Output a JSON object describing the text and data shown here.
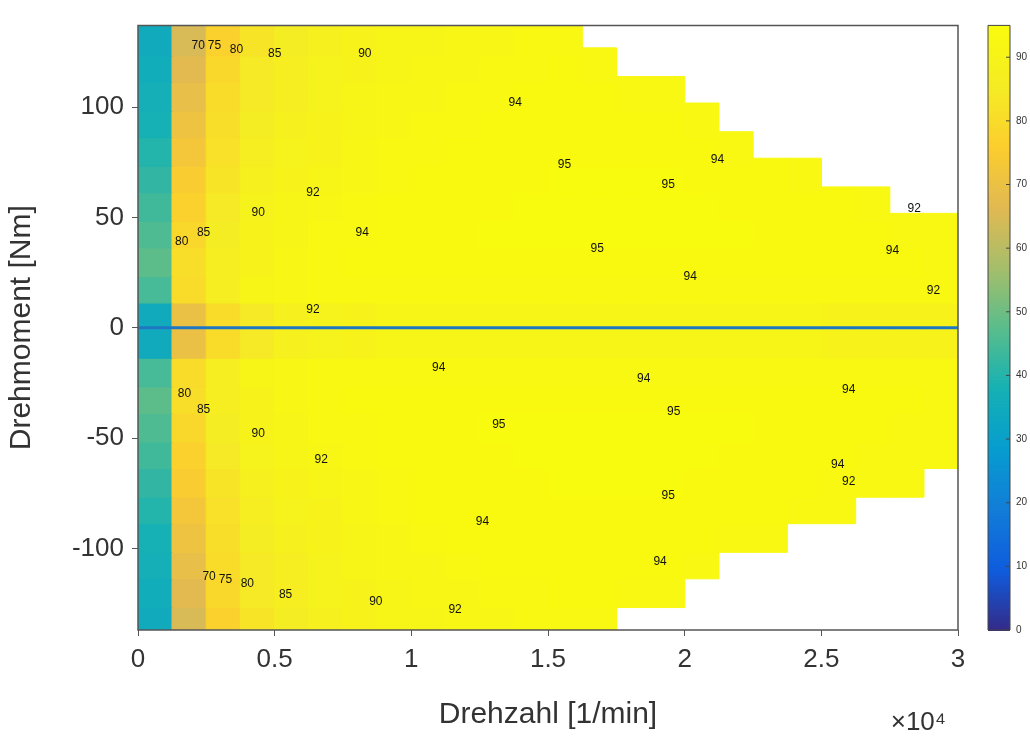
{
  "chart_data": {
    "type": "scatter",
    "xlabel": "Drehzahl [1/min]",
    "ylabel": "Drehmoment [Nm]",
    "marker": "square",
    "x": [
      0.0625,
      0.1875,
      0.3125,
      0.4375,
      0.5625,
      0.6875,
      0.8125,
      0.9375,
      1.0625,
      1.1875,
      1.3125,
      1.4375,
      1.5625,
      1.6875,
      1.8125,
      1.9375,
      2.0625,
      2.1875,
      2.3125,
      2.4375,
      2.5625,
      2.6875,
      2.8125,
      2.9375
    ],
    "xlim": [
      0,
      3
    ],
    "xticks": [
      0,
      0.5,
      1,
      1.5,
      2,
      2.5,
      3
    ],
    "ylim": [
      -137,
      137
    ],
    "yticks": [
      -100,
      -50,
      0,
      50,
      100
    ],
    "clim": [
      0,
      95
    ],
    "cticks": [
      0,
      10,
      20,
      30,
      40,
      50,
      60,
      70,
      80,
      90
    ],
    "series": [
      {
        "values": [
          131,
          131,
          131,
          131,
          131,
          131,
          131,
          131,
          131,
          131,
          131,
          131,
          131,
          null,
          null,
          null,
          null,
          null,
          null,
          null,
          null,
          null,
          null,
          null
        ],
        "cvalues": [
          35,
          65,
          77,
          83,
          86,
          88,
          90,
          91,
          91,
          92,
          92,
          93,
          93,
          null,
          null,
          null,
          null,
          null,
          null,
          null,
          null,
          null,
          null,
          null
        ],
        "colors": [
          "#11aabd",
          "#d8ba56",
          "#fbd12d",
          "#f7e427",
          "#f5ed23",
          "#f6f01e",
          "#f7f31a",
          "#f7f517",
          "#f7f517",
          "#f8f615",
          "#f8f615",
          "#f8f813",
          "#f8f813",
          null,
          null,
          null,
          null,
          null,
          null,
          null,
          null,
          null,
          null,
          null
        ]
      },
      {
        "values": [
          119,
          119,
          119,
          119,
          119,
          119,
          119,
          119,
          119,
          119,
          119,
          119,
          119,
          119,
          null,
          null,
          null,
          null,
          null,
          null,
          null,
          null,
          null,
          null
        ],
        "cvalues": [
          36,
          67,
          79,
          85,
          87,
          89,
          90,
          91,
          92,
          92,
          93,
          93,
          94,
          93,
          null,
          null,
          null,
          null,
          null,
          null,
          null,
          null,
          null,
          null
        ],
        "colors": [
          "#12adba",
          "#e2ba50",
          "#fad72b",
          "#f5ea25",
          "#f6ee21",
          "#f6f21c",
          "#f7f31a",
          "#f7f517",
          "#f8f615",
          "#f8f615",
          "#f8f813",
          "#f8f813",
          "#f9f910",
          "#f8f813",
          null,
          null,
          null,
          null,
          null,
          null,
          null,
          null,
          null,
          null
        ]
      },
      {
        "values": [
          106,
          106,
          106,
          106,
          106,
          106,
          106,
          106,
          106,
          106,
          106,
          106,
          106,
          106,
          106,
          106,
          null,
          null,
          null,
          null,
          null,
          null,
          null,
          null
        ],
        "cvalues": [
          37,
          69,
          80,
          85,
          87,
          89,
          91,
          92,
          92,
          93,
          93,
          94,
          94,
          94,
          93,
          93,
          null,
          null,
          null,
          null,
          null,
          null,
          null,
          null
        ],
        "colors": [
          "#14afb7",
          "#e8bf49",
          "#f9db2a",
          "#f5ea25",
          "#f6ee21",
          "#f6f21c",
          "#f7f517",
          "#f8f615",
          "#f8f615",
          "#f8f813",
          "#f8f813",
          "#f9f910",
          "#f9f910",
          "#f9f910",
          "#f8f813",
          "#f8f813",
          null,
          null,
          null,
          null,
          null,
          null,
          null,
          null
        ]
      },
      {
        "values": [
          94,
          94,
          94,
          94,
          94,
          94,
          94,
          94,
          94,
          94,
          94,
          94,
          94,
          94,
          94,
          94,
          94,
          null,
          null,
          null,
          null,
          null,
          null,
          null
        ],
        "cvalues": [
          38,
          71,
          81,
          86,
          88,
          90,
          91,
          92,
          93,
          93,
          94,
          94,
          94,
          94,
          94,
          94,
          93,
          null,
          null,
          null,
          null,
          null,
          null,
          null
        ],
        "colors": [
          "#15b1b4",
          "#eec341",
          "#f8de29",
          "#f5ed23",
          "#f6f01e",
          "#f7f31a",
          "#f7f517",
          "#f8f615",
          "#f8f813",
          "#f8f813",
          "#f9f910",
          "#f9f910",
          "#f9f910",
          "#f9f910",
          "#f9f910",
          "#f9f910",
          "#f8f813",
          null,
          null,
          null,
          null,
          null,
          null,
          null
        ]
      },
      {
        "values": [
          81,
          81,
          81,
          81,
          81,
          81,
          81,
          81,
          81,
          81,
          81,
          81,
          81,
          81,
          81,
          81,
          81,
          81,
          null,
          null,
          null,
          null,
          null,
          null
        ],
        "cvalues": [
          40,
          73,
          82,
          87,
          89,
          90,
          92,
          93,
          93,
          94,
          94,
          94,
          94,
          94,
          94,
          94,
          94,
          93,
          null,
          null,
          null,
          null,
          null,
          null
        ],
        "colors": [
          "#23b4ac",
          "#f3c739",
          "#f8e128",
          "#f6ee21",
          "#f6f21c",
          "#f7f31a",
          "#f8f615",
          "#f8f813",
          "#f8f813",
          "#f9f910",
          "#f9f910",
          "#f9f910",
          "#f9f910",
          "#f9f910",
          "#f9f910",
          "#f9f910",
          "#f9f910",
          "#f8f813",
          null,
          null,
          null,
          null,
          null,
          null
        ]
      },
      {
        "values": [
          69,
          69,
          69,
          69,
          69,
          69,
          69,
          69,
          69,
          69,
          69,
          69,
          69,
          69,
          69,
          69,
          69,
          69,
          69,
          69,
          null,
          null,
          null,
          null
        ],
        "cvalues": [
          42,
          75,
          83,
          88,
          90,
          91,
          92,
          93,
          94,
          94,
          94,
          94,
          95,
          95,
          95,
          95,
          94,
          94,
          94,
          93,
          null,
          null,
          null,
          null
        ],
        "colors": [
          "#32b6a3",
          "#f9cc32",
          "#f7e427",
          "#f6f01e",
          "#f7f31a",
          "#f7f517",
          "#f8f615",
          "#f8f813",
          "#f9f910",
          "#f9f910",
          "#f9f910",
          "#f9f910",
          "#f9fb0e",
          "#f9fb0e",
          "#f9fb0e",
          "#f9fb0e",
          "#f9f910",
          "#f9f910",
          "#f9f910",
          "#f8f813",
          null,
          null,
          null,
          null
        ]
      },
      {
        "values": [
          56,
          56,
          56,
          56,
          56,
          56,
          56,
          56,
          56,
          56,
          56,
          56,
          56,
          56,
          56,
          56,
          56,
          56,
          56,
          56,
          56,
          56,
          null,
          null
        ],
        "cvalues": [
          44,
          77,
          85,
          89,
          91,
          92,
          93,
          94,
          94,
          94,
          94,
          95,
          95,
          95,
          95,
          95,
          95,
          94,
          94,
          94,
          94,
          93,
          null,
          null
        ],
        "colors": [
          "#40b99b",
          "#fbd12d",
          "#f5ea25",
          "#f6f21c",
          "#f7f517",
          "#f8f615",
          "#f8f813",
          "#f9f910",
          "#f9f910",
          "#f9f910",
          "#f9f910",
          "#f9fb0e",
          "#f9fb0e",
          "#f9fb0e",
          "#f9fb0e",
          "#f9fb0e",
          "#f9fb0e",
          "#f9f910",
          "#f9f910",
          "#f9f910",
          "#f9f910",
          "#f8f813",
          null,
          null
        ]
      },
      {
        "values": [
          44,
          44,
          44,
          44,
          44,
          44,
          44,
          44,
          44,
          44,
          44,
          44,
          44,
          44,
          44,
          44,
          44,
          44,
          44,
          44,
          44,
          44,
          44,
          44
        ],
        "cvalues": [
          46,
          79,
          86,
          90,
          91,
          93,
          93,
          94,
          94,
          94,
          95,
          95,
          95,
          95,
          95,
          95,
          95,
          95,
          94,
          94,
          94,
          94,
          93,
          93
        ],
        "colors": [
          "#4ebb92",
          "#fad72b",
          "#f5ed23",
          "#f7f31a",
          "#f7f517",
          "#f8f813",
          "#f8f813",
          "#f9f910",
          "#f9f910",
          "#f9f910",
          "#f9fb0e",
          "#f9fb0e",
          "#f9fb0e",
          "#f9fb0e",
          "#f9fb0e",
          "#f9fb0e",
          "#f9fb0e",
          "#f9fb0e",
          "#f9f910",
          "#f9f910",
          "#f9f910",
          "#f9f910",
          "#f8f813",
          "#f8f813"
        ]
      },
      {
        "values": [
          31,
          31,
          31,
          31,
          31,
          31,
          31,
          31,
          31,
          31,
          31,
          31,
          31,
          31,
          31,
          31,
          31,
          31,
          31,
          31,
          31,
          31,
          31,
          31
        ],
        "cvalues": [
          48,
          81,
          87,
          90,
          92,
          93,
          94,
          94,
          94,
          94,
          94,
          94,
          94,
          94,
          94,
          94,
          94,
          94,
          94,
          94,
          94,
          94,
          94,
          93
        ],
        "colors": [
          "#5dbd8a",
          "#f8de29",
          "#f6ee21",
          "#f7f31a",
          "#f8f615",
          "#f8f813",
          "#f9f910",
          "#f9f910",
          "#f9f910",
          "#f9f910",
          "#f9f910",
          "#f9f910",
          "#f9f910",
          "#f9f910",
          "#f9f910",
          "#f9f910",
          "#f9f910",
          "#f9f910",
          "#f9f910",
          "#f9f910",
          "#f9f910",
          "#f9f910",
          "#f9f910",
          "#f8f813"
        ]
      },
      {
        "values": [
          19,
          19,
          19,
          19,
          19,
          19,
          19,
          19,
          19,
          19,
          19,
          19,
          19,
          19,
          19,
          19,
          19,
          19,
          19,
          19,
          19,
          19,
          19,
          19
        ],
        "cvalues": [
          45,
          80,
          87,
          91,
          92,
          93,
          93,
          93,
          93,
          93,
          93,
          93,
          93,
          93,
          93,
          93,
          93,
          93,
          93,
          93,
          93,
          93,
          93,
          93
        ],
        "colors": [
          "#47ba97",
          "#f9db2a",
          "#f6ee21",
          "#f7f517",
          "#f8f615",
          "#f8f813",
          "#f8f813",
          "#f8f813",
          "#f8f813",
          "#f8f813",
          "#f8f813",
          "#f8f813",
          "#f8f813",
          "#f8f813",
          "#f8f813",
          "#f8f813",
          "#f8f813",
          "#f8f813",
          "#f8f813",
          "#f8f813",
          "#f8f813",
          "#f8f813",
          "#f8f813",
          "#f8f813"
        ]
      },
      {
        "values": [
          6,
          6,
          6,
          6,
          6,
          6,
          6,
          6,
          6,
          6,
          6,
          6,
          6,
          6,
          6,
          6,
          6,
          6,
          6,
          6,
          6,
          6,
          6,
          6
        ],
        "cvalues": [
          35,
          70,
          80,
          85,
          88,
          89,
          90,
          91,
          91,
          91,
          91,
          91,
          91,
          91,
          91,
          91,
          91,
          91,
          91,
          91,
          90,
          90,
          90,
          90
        ],
        "colors": [
          "#11aabd",
          "#ebc145",
          "#f9db2a",
          "#f5ea25",
          "#f6f01e",
          "#f6f21c",
          "#f7f31a",
          "#f7f517",
          "#f7f517",
          "#f7f517",
          "#f7f517",
          "#f7f517",
          "#f7f517",
          "#f7f517",
          "#f7f517",
          "#f7f517",
          "#f7f517",
          "#f7f517",
          "#f7f517",
          "#f7f517",
          "#f7f31a",
          "#f7f31a",
          "#f7f31a",
          "#f7f31a"
        ]
      },
      {
        "values": [
          -6,
          -6,
          -6,
          -6,
          -6,
          -6,
          -6,
          -6,
          -6,
          -6,
          -6,
          -6,
          -6,
          -6,
          -6,
          -6,
          -6,
          -6,
          -6,
          -6,
          -6,
          -6,
          -6,
          -6
        ],
        "cvalues": [
          35,
          70,
          80,
          85,
          88,
          89,
          90,
          91,
          91,
          91,
          91,
          91,
          91,
          91,
          91,
          91,
          91,
          91,
          91,
          91,
          90,
          90,
          90,
          90
        ],
        "colors": [
          "#11aabd",
          "#ebc145",
          "#f9db2a",
          "#f5ea25",
          "#f6f01e",
          "#f6f21c",
          "#f7f31a",
          "#f7f517",
          "#f7f517",
          "#f7f517",
          "#f7f517",
          "#f7f517",
          "#f7f517",
          "#f7f517",
          "#f7f517",
          "#f7f517",
          "#f7f517",
          "#f7f517",
          "#f7f517",
          "#f7f517",
          "#f7f31a",
          "#f7f31a",
          "#f7f31a",
          "#f7f31a"
        ]
      },
      {
        "values": [
          -19,
          -19,
          -19,
          -19,
          -19,
          -19,
          -19,
          -19,
          -19,
          -19,
          -19,
          -19,
          -19,
          -19,
          -19,
          -19,
          -19,
          -19,
          -19,
          -19,
          -19,
          -19,
          -19,
          -19
        ],
        "cvalues": [
          45,
          80,
          87,
          91,
          92,
          93,
          93,
          93,
          93,
          93,
          93,
          93,
          93,
          93,
          93,
          93,
          93,
          93,
          93,
          93,
          93,
          93,
          93,
          93
        ],
        "colors": [
          "#47ba97",
          "#f9db2a",
          "#f6ee21",
          "#f7f517",
          "#f8f615",
          "#f8f813",
          "#f8f813",
          "#f8f813",
          "#f8f813",
          "#f8f813",
          "#f8f813",
          "#f8f813",
          "#f8f813",
          "#f8f813",
          "#f8f813",
          "#f8f813",
          "#f8f813",
          "#f8f813",
          "#f8f813",
          "#f8f813",
          "#f8f813",
          "#f8f813",
          "#f8f813",
          "#f8f813"
        ]
      },
      {
        "values": [
          -31,
          -31,
          -31,
          -31,
          -31,
          -31,
          -31,
          -31,
          -31,
          -31,
          -31,
          -31,
          -31,
          -31,
          -31,
          -31,
          -31,
          -31,
          -31,
          -31,
          -31,
          -31,
          -31,
          -31
        ],
        "cvalues": [
          48,
          81,
          87,
          90,
          92,
          93,
          94,
          94,
          94,
          94,
          94,
          94,
          94,
          94,
          94,
          94,
          94,
          94,
          94,
          94,
          94,
          94,
          94,
          93
        ],
        "colors": [
          "#5dbd8a",
          "#f8de29",
          "#f6ee21",
          "#f7f31a",
          "#f8f615",
          "#f8f813",
          "#f9f910",
          "#f9f910",
          "#f9f910",
          "#f9f910",
          "#f9f910",
          "#f9f910",
          "#f9f910",
          "#f9f910",
          "#f9f910",
          "#f9f910",
          "#f9f910",
          "#f9f910",
          "#f9f910",
          "#f9f910",
          "#f9f910",
          "#f9f910",
          "#f9f910",
          "#f8f813"
        ]
      },
      {
        "values": [
          -44,
          -44,
          -44,
          -44,
          -44,
          -44,
          -44,
          -44,
          -44,
          -44,
          -44,
          -44,
          -44,
          -44,
          -44,
          -44,
          -44,
          -44,
          -44,
          -44,
          -44,
          -44,
          -44,
          -44
        ],
        "cvalues": [
          46,
          79,
          86,
          90,
          91,
          93,
          93,
          94,
          94,
          94,
          95,
          95,
          95,
          95,
          95,
          95,
          95,
          95,
          94,
          94,
          94,
          94,
          93,
          93
        ],
        "colors": [
          "#4ebb92",
          "#fad72b",
          "#f5ed23",
          "#f7f31a",
          "#f7f517",
          "#f8f813",
          "#f8f813",
          "#f9f910",
          "#f9f910",
          "#f9f910",
          "#f9fb0e",
          "#f9fb0e",
          "#f9fb0e",
          "#f9fb0e",
          "#f9fb0e",
          "#f9fb0e",
          "#f9fb0e",
          "#f9fb0e",
          "#f9f910",
          "#f9f910",
          "#f9f910",
          "#f9f910",
          "#f8f813",
          "#f8f813"
        ]
      },
      {
        "values": [
          -56,
          -56,
          -56,
          -56,
          -56,
          -56,
          -56,
          -56,
          -56,
          -56,
          -56,
          -56,
          -56,
          -56,
          -56,
          -56,
          -56,
          -56,
          -56,
          -56,
          -56,
          -56,
          -56,
          -56
        ],
        "cvalues": [
          44,
          77,
          85,
          89,
          91,
          92,
          93,
          94,
          94,
          94,
          94,
          95,
          95,
          95,
          95,
          95,
          95,
          94,
          94,
          94,
          94,
          93,
          93,
          93
        ],
        "colors": [
          "#40b99b",
          "#fbd12d",
          "#f5ea25",
          "#f6f21c",
          "#f7f517",
          "#f8f615",
          "#f8f813",
          "#f9f910",
          "#f9f910",
          "#f9f910",
          "#f9f910",
          "#f9fb0e",
          "#f9fb0e",
          "#f9fb0e",
          "#f9fb0e",
          "#f9fb0e",
          "#f9fb0e",
          "#f9f910",
          "#f9f910",
          "#f9f910",
          "#f9f910",
          "#f8f813",
          "#f8f813",
          "#f8f813"
        ]
      },
      {
        "values": [
          -69,
          -69,
          -69,
          -69,
          -69,
          -69,
          -69,
          -69,
          -69,
          -69,
          -69,
          -69,
          -69,
          -69,
          -69,
          -69,
          -69,
          -69,
          -69,
          -69,
          -69,
          -69,
          -69,
          null
        ],
        "cvalues": [
          42,
          75,
          83,
          88,
          90,
          91,
          92,
          93,
          94,
          94,
          94,
          94,
          95,
          95,
          95,
          95,
          94,
          94,
          94,
          94,
          93,
          93,
          93,
          null
        ],
        "colors": [
          "#32b6a3",
          "#f9cc32",
          "#f7e427",
          "#f6f01e",
          "#f7f31a",
          "#f7f517",
          "#f8f615",
          "#f8f813",
          "#f9f910",
          "#f9f910",
          "#f9f910",
          "#f9f910",
          "#f9fb0e",
          "#f9fb0e",
          "#f9fb0e",
          "#f9fb0e",
          "#f9f910",
          "#f9f910",
          "#f9f910",
          "#f9f910",
          "#f8f813",
          "#f8f813",
          "#f8f813",
          null
        ]
      },
      {
        "values": [
          -81,
          -81,
          -81,
          -81,
          -81,
          -81,
          -81,
          -81,
          -81,
          -81,
          -81,
          -81,
          -81,
          -81,
          -81,
          -81,
          -81,
          -81,
          -81,
          -81,
          -81,
          null,
          null,
          null
        ],
        "cvalues": [
          40,
          73,
          82,
          87,
          89,
          90,
          92,
          93,
          94,
          94,
          94,
          94,
          94,
          94,
          94,
          94,
          94,
          94,
          94,
          93,
          93,
          null,
          null,
          null
        ],
        "colors": [
          "#23b4ac",
          "#f3c739",
          "#f8e128",
          "#f6ee21",
          "#f6f21c",
          "#f7f31a",
          "#f8f615",
          "#f8f813",
          "#f9f910",
          "#f9f910",
          "#f9f910",
          "#f9f910",
          "#f9f910",
          "#f9f910",
          "#f9f910",
          "#f9f910",
          "#f9f910",
          "#f9f910",
          "#f9f910",
          "#f8f813",
          "#f8f813",
          null,
          null,
          null
        ]
      },
      {
        "values": [
          -94,
          -94,
          -94,
          -94,
          -94,
          -94,
          -94,
          -94,
          -94,
          -94,
          -94,
          -94,
          -94,
          -94,
          -94,
          -94,
          -94,
          -94,
          -94,
          null,
          null,
          null,
          null,
          null
        ],
        "cvalues": [
          38,
          71,
          81,
          86,
          88,
          90,
          91,
          92,
          93,
          94,
          94,
          94,
          94,
          94,
          94,
          94,
          94,
          93,
          93,
          null,
          null,
          null,
          null,
          null
        ],
        "colors": [
          "#15b1b4",
          "#eec341",
          "#f8de29",
          "#f5ed23",
          "#f6f01e",
          "#f7f31a",
          "#f7f517",
          "#f8f615",
          "#f8f813",
          "#f9f910",
          "#f9f910",
          "#f9f910",
          "#f9f910",
          "#f9f910",
          "#f9f910",
          "#f9f910",
          "#f9f910",
          "#f8f813",
          "#f8f813",
          null,
          null,
          null,
          null,
          null
        ]
      },
      {
        "values": [
          -106,
          -106,
          -106,
          -106,
          -106,
          -106,
          -106,
          -106,
          -106,
          -106,
          -106,
          -106,
          -106,
          -106,
          -106,
          -106,
          -106,
          null,
          null,
          null,
          null,
          null,
          null,
          null
        ],
        "cvalues": [
          37,
          69,
          80,
          85,
          87,
          89,
          91,
          92,
          92,
          93,
          94,
          94,
          94,
          94,
          94,
          94,
          93,
          null,
          null,
          null,
          null,
          null,
          null,
          null
        ],
        "colors": [
          "#14afb7",
          "#e8bf49",
          "#f9db2a",
          "#f5ea25",
          "#f6ee21",
          "#f6f21c",
          "#f7f517",
          "#f8f615",
          "#f8f615",
          "#f8f813",
          "#f9f910",
          "#f9f910",
          "#f9f910",
          "#f9f910",
          "#f9f910",
          "#f9f910",
          "#f8f813",
          null,
          null,
          null,
          null,
          null,
          null,
          null
        ]
      },
      {
        "values": [
          -119,
          -119,
          -119,
          -119,
          -119,
          -119,
          -119,
          -119,
          -119,
          -119,
          -119,
          -119,
          -119,
          -119,
          -119,
          -119,
          null,
          null,
          null,
          null,
          null,
          null,
          null,
          null
        ],
        "cvalues": [
          36,
          67,
          79,
          85,
          87,
          89,
          90,
          91,
          92,
          92,
          93,
          93,
          94,
          94,
          93,
          93,
          null,
          null,
          null,
          null,
          null,
          null,
          null,
          null
        ],
        "colors": [
          "#12adba",
          "#e2ba50",
          "#fad72b",
          "#f5ea25",
          "#f6ee21",
          "#f6f21c",
          "#f7f31a",
          "#f7f517",
          "#f8f615",
          "#f8f615",
          "#f8f813",
          "#f8f813",
          "#f9f910",
          "#f9f910",
          "#f8f813",
          "#f8f813",
          null,
          null,
          null,
          null,
          null,
          null,
          null,
          null
        ]
      },
      {
        "values": [
          -131,
          -131,
          -131,
          -131,
          -131,
          -131,
          -131,
          -131,
          -131,
          -131,
          -131,
          -131,
          -131,
          -131,
          null,
          null,
          null,
          null,
          null,
          null,
          null,
          null,
          null,
          null
        ],
        "cvalues": [
          35,
          65,
          77,
          83,
          86,
          88,
          90,
          91,
          91,
          92,
          92,
          93,
          93,
          93,
          null,
          null,
          null,
          null,
          null,
          null,
          null,
          null,
          null,
          null
        ],
        "colors": [
          "#11aabd",
          "#d8ba56",
          "#fbd12d",
          "#f7e427",
          "#f5ed23",
          "#f6f01e",
          "#f7f31a",
          "#f7f517",
          "#f7f517",
          "#f8f615",
          "#f8f615",
          "#f8f813",
          "#f8f813",
          "#f8f813",
          null,
          null,
          null,
          null,
          null,
          null,
          null,
          null,
          null,
          null
        ]
      }
    ],
    "ref_lines": [
      {
        "axis": "y",
        "value": 0,
        "color": "#1f77c4"
      }
    ],
    "annotations": [
      "×10⁴",
      "70",
      "75",
      "80",
      "85",
      "90",
      "80",
      "85",
      "90",
      "92",
      "94",
      "94",
      "95",
      "95",
      "95",
      "94",
      "94",
      "94",
      "92",
      "92",
      "92",
      "94",
      "94",
      "94",
      "95",
      "95",
      "95",
      "94",
      "92",
      "94",
      "94",
      "92",
      "90",
      "85",
      "80",
      "92",
      "90",
      "85",
      "80",
      "75",
      "70"
    ]
  }
}
